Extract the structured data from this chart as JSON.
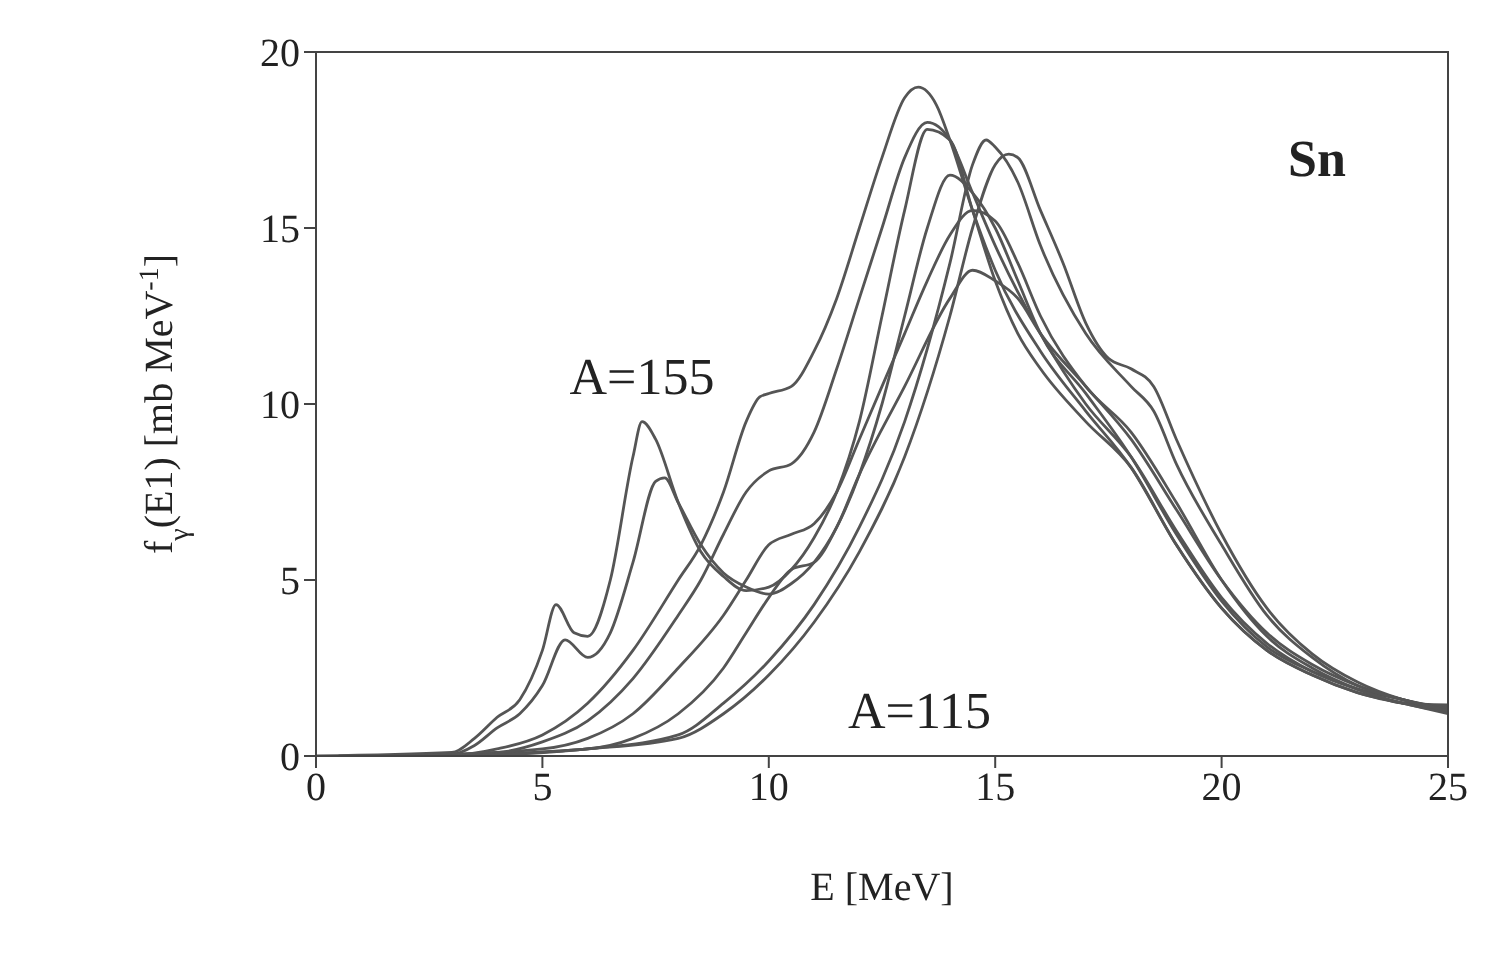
{
  "chart_data": {
    "type": "line",
    "xlabel": "E [MeV]",
    "ylabel": "f$_{γ}$(E1) [mb MeV$^{-1}$]",
    "xlim": [
      0,
      25
    ],
    "ylim": [
      0,
      20
    ],
    "xticks": [
      0,
      5,
      10,
      15,
      20,
      25
    ],
    "yticks": [
      0,
      5,
      10,
      15,
      20
    ],
    "marker": "none",
    "line_style": "solid",
    "annotations": [
      "Sn",
      {
        "text": "A=155",
        "x": 7.2,
        "y": 9.5
      },
      "A=115"
    ],
    "series": [
      {
        "color": "#555555",
        "x": [
          0,
          3,
          3.5,
          4,
          4.5,
          5,
          5.3,
          5.7,
          6,
          6.5,
          7,
          7.2,
          7.5,
          8,
          8.5,
          9,
          9.5,
          10,
          10.5,
          11,
          11.5,
          12,
          12.5,
          13,
          13.5,
          14,
          14.5,
          15,
          15.5,
          16,
          17,
          18,
          19,
          20,
          21,
          22,
          23,
          24,
          25
        ],
        "values": [
          0,
          0.1,
          0.5,
          1.1,
          1.6,
          3,
          4.3,
          3.5,
          3.4,
          5,
          8.5,
          9.5,
          9,
          7.2,
          5.8,
          5.1,
          4.7,
          4.8,
          5.3,
          6.2,
          7.5,
          9.5,
          12.5,
          15.5,
          17.8,
          17.5,
          15.5,
          13.5,
          12,
          11,
          9.5,
          8.2,
          6,
          4.2,
          3,
          2.3,
          1.8,
          1.5,
          1.2
        ]
      },
      {
        "color": "#555555",
        "x": [
          0.5,
          3,
          3.5,
          4,
          4.5,
          5,
          5.5,
          6,
          6.5,
          7,
          7.5,
          7.7,
          8,
          8.5,
          9,
          9.5,
          10,
          10.5,
          11,
          11.5,
          12,
          12.5,
          13,
          13.5,
          14,
          14.5,
          15,
          15.5,
          16,
          17,
          18,
          19,
          20,
          21,
          22,
          23,
          24,
          25
        ],
        "values": [
          0,
          0.05,
          0.3,
          0.8,
          1.2,
          2,
          3.3,
          2.8,
          3.5,
          5.5,
          7.8,
          7.9,
          7.2,
          6,
          5.2,
          4.8,
          4.6,
          4.9,
          5.5,
          6.5,
          8,
          10,
          12.5,
          15,
          16.5,
          16,
          15,
          13.5,
          12,
          10.3,
          8.5,
          6.3,
          4.4,
          3.1,
          2.4,
          1.9,
          1.6,
          1.3
        ]
      },
      {
        "color": "#555555",
        "x": [
          1,
          3,
          4,
          5,
          6,
          7,
          8,
          8.5,
          9,
          9.5,
          9.8,
          10,
          10.5,
          11,
          11.5,
          12,
          12.5,
          13,
          13.3,
          13.7,
          14,
          14.5,
          15,
          16,
          17,
          18,
          19,
          20,
          21,
          22,
          23,
          24,
          25
        ],
        "values": [
          0,
          0.02,
          0.2,
          0.6,
          1.5,
          3,
          5,
          6,
          7.5,
          9.5,
          10.2,
          10.3,
          10.5,
          11.5,
          13,
          15,
          17,
          18.7,
          19,
          18.5,
          17.5,
          15.5,
          13.8,
          11.5,
          9.8,
          8.2,
          6,
          4.2,
          3,
          2.3,
          1.8,
          1.5,
          1.4
        ]
      },
      {
        "color": "#555555",
        "x": [
          1.5,
          4,
          5,
          6,
          7,
          8,
          8.5,
          9,
          9.5,
          10,
          10.5,
          11,
          11.5,
          12,
          12.5,
          13,
          13.5,
          14,
          14.5,
          15,
          16,
          17,
          18,
          19,
          20,
          21,
          22,
          23,
          24,
          25
        ],
        "values": [
          0,
          0.1,
          0.4,
          1,
          2.2,
          4,
          5,
          6.3,
          7.5,
          8.1,
          8.3,
          9.2,
          11,
          13,
          15,
          17,
          18,
          17.5,
          16,
          14.5,
          12,
          10,
          8.5,
          6.4,
          4.5,
          3.2,
          2.4,
          1.9,
          1.5,
          1.45
        ]
      },
      {
        "color": "#555555",
        "x": [
          2,
          5,
          6,
          7,
          8,
          9,
          9.5,
          10,
          10.5,
          11,
          11.5,
          12,
          12.5,
          13,
          13.5,
          14,
          14.5,
          15,
          15.5,
          16,
          17,
          18,
          19,
          20,
          21,
          22,
          23,
          24,
          25
        ],
        "values": [
          0,
          0.2,
          0.5,
          1.2,
          2.5,
          4,
          5,
          6,
          6.3,
          6.6,
          7.5,
          9,
          10.5,
          12,
          13.5,
          14.8,
          15.5,
          15.2,
          14,
          12.5,
          10.5,
          9.2,
          7.2,
          5,
          3.4,
          2.5,
          1.9,
          1.5,
          1.25
        ]
      },
      {
        "color": "#555555",
        "x": [
          2.5,
          6,
          7,
          8,
          9,
          9.5,
          10,
          10.5,
          11,
          11.5,
          12,
          13,
          14,
          14.5,
          15,
          15.5,
          16,
          17,
          18,
          19,
          20,
          21,
          22,
          23,
          24,
          25
        ],
        "values": [
          0,
          0.2,
          0.5,
          1.2,
          2.5,
          3.5,
          4.5,
          5.3,
          5.5,
          6.5,
          8,
          10.5,
          13,
          13.8,
          13.5,
          13,
          12,
          10.5,
          9,
          7,
          5,
          3.5,
          2.6,
          2,
          1.6,
          1.35
        ]
      },
      {
        "color": "#555555",
        "x": [
          3,
          6,
          8,
          9,
          10,
          11,
          12,
          13,
          14,
          14.5,
          15,
          15.3,
          15.5,
          16,
          16.5,
          17,
          17.5,
          18,
          18.5,
          19,
          20,
          21,
          22,
          23,
          24,
          25
        ],
        "values": [
          0,
          0.2,
          0.5,
          1.2,
          2.3,
          3.8,
          5.8,
          8.5,
          12.5,
          15,
          16.8,
          17.1,
          17,
          15.5,
          14,
          12.3,
          11.3,
          11,
          10.5,
          9,
          6.3,
          4.2,
          2.9,
          2.1,
          1.6,
          1.32
        ]
      },
      {
        "color": "#555555",
        "x": [
          3.5,
          6,
          8,
          9,
          10,
          11,
          12,
          13,
          14,
          14.5,
          14.8,
          15,
          15.5,
          16,
          17,
          18,
          18.5,
          19,
          20,
          21,
          22,
          23,
          24,
          25
        ],
        "values": [
          0,
          0.2,
          0.6,
          1.5,
          2.7,
          4.3,
          6.5,
          9.5,
          14,
          16.8,
          17.5,
          17.3,
          16.3,
          14.5,
          12,
          10.5,
          9.8,
          8.3,
          6,
          4,
          2.8,
          2,
          1.6,
          1.28
        ]
      }
    ]
  }
}
